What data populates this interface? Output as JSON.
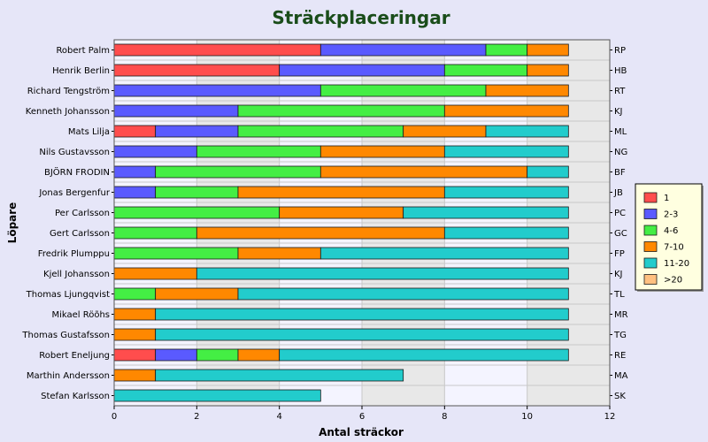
{
  "chart_data": {
    "type": "bar",
    "orientation": "horizontal",
    "stacked": true,
    "title": "Sträckplaceringar",
    "xlabel": "Antal sträckor",
    "ylabel": "Löpare",
    "xlim": [
      0,
      12
    ],
    "xticks": [
      "0",
      "2",
      "4",
      "6",
      "8",
      "10",
      "12"
    ],
    "grid": true,
    "legend_position": "right",
    "categories": [
      "Robert Palm",
      "Henrik Berlin",
      "Richard Tengström",
      "Kenneth Johansson",
      "Mats Lilja",
      "Nils Gustavsson",
      "BJÖRN FRODIN",
      "Jonas Bergenfur",
      "Per Carlsson",
      "Gert Carlsson",
      "Fredrik Plumppu",
      "Kjell Johansson",
      "Thomas Ljungqvist",
      "Mikael Röõhs",
      "Thomas Gustafsson",
      "Robert Eneljung",
      "Marthin Andersson",
      "Stefan Karlsson"
    ],
    "abbreviations": [
      "RP",
      "HB",
      "RT",
      "KJ",
      "ML",
      "NG",
      "BF",
      "JB",
      "PC",
      "GC",
      "FP",
      "KJ",
      "TL",
      "MR",
      "TG",
      "RE",
      "MA",
      "SK"
    ],
    "series": [
      {
        "name": "1",
        "color": "#ff4d4d",
        "values": [
          5,
          4,
          0,
          0,
          1,
          0,
          0,
          0,
          0,
          0,
          0,
          0,
          0,
          0,
          0,
          1,
          0,
          0
        ]
      },
      {
        "name": "2-3",
        "color": "#5a5aff",
        "values": [
          4,
          4,
          5,
          3,
          2,
          2,
          1,
          1,
          0,
          0,
          0,
          0,
          0,
          0,
          0,
          1,
          0,
          0
        ]
      },
      {
        "name": "4-6",
        "color": "#44ee44",
        "values": [
          1,
          2,
          4,
          5,
          4,
          3,
          4,
          2,
          4,
          2,
          3,
          0,
          1,
          0,
          0,
          1,
          0,
          0
        ]
      },
      {
        "name": "7-10",
        "color": "#ff8800",
        "values": [
          1,
          1,
          2,
          3,
          2,
          3,
          5,
          5,
          3,
          6,
          2,
          2,
          2,
          1,
          1,
          1,
          1,
          0
        ]
      },
      {
        "name": "11-20",
        "color": "#22cccc",
        "values": [
          0,
          0,
          0,
          0,
          2,
          3,
          1,
          3,
          4,
          3,
          6,
          9,
          8,
          10,
          10,
          7,
          6,
          5
        ]
      },
      {
        "name": ">20",
        "color": "#ffc080",
        "values": [
          0,
          0,
          0,
          0,
          0,
          0,
          0,
          0,
          0,
          0,
          0,
          0,
          0,
          0,
          0,
          0,
          0,
          0
        ]
      }
    ],
    "colors": {
      "title": "#1a4d1a",
      "plot_bg": "#f4f4ff",
      "band_bg": "#e8e8e8",
      "page_bg": "#e6e6f8",
      "legend_bg": "#ffffe0"
    }
  }
}
